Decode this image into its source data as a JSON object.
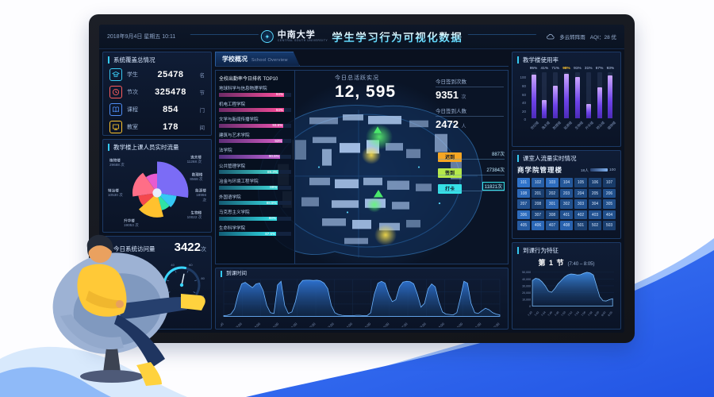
{
  "header": {
    "datetime": "2018年9月4日 星期五 10:11",
    "university": "中南大学",
    "university_en": "CENTRAL SOUTH UNIVERSITY",
    "title": "学生学习行为可视化数据",
    "weather": "多云转阵雨",
    "aqi": "AQI：28 优"
  },
  "system_coverage": {
    "title": "系统覆盖总情况",
    "items": [
      {
        "icon": "graduation-cap",
        "label": "学生",
        "value": "25478",
        "unit": "名",
        "color": "#38c9f2"
      },
      {
        "icon": "clock",
        "label": "节次",
        "value": "325478",
        "unit": "节",
        "color": "#ff5d5d"
      },
      {
        "icon": "book",
        "label": "课程",
        "value": "854",
        "unit": "门",
        "color": "#4f8df5"
      },
      {
        "icon": "classroom",
        "label": "教室",
        "value": "178",
        "unit": "间",
        "color": "#ffc62e"
      }
    ]
  },
  "building_flow": {
    "title": "教学楼上课人员实时流量",
    "chart_data": {
      "type": "pie",
      "style": "nightingale-rose",
      "segments": [
        {
          "name": "植物楼",
          "value": 29688,
          "label": "29688 次",
          "color": "#7b6cf6"
        },
        {
          "name": "逸夫楼",
          "value": 11268,
          "label": "11268 次",
          "color": "#35c8f5"
        },
        {
          "name": "数理楼",
          "value": 8568,
          "label": "8568 次",
          "color": "#2fe3a6"
        },
        {
          "name": "能源楼",
          "value": 18966,
          "label": "18966 次",
          "color": "#ffc12e"
        },
        {
          "name": "生物楼",
          "value": 10022,
          "label": "10022 次",
          "color": "#f5484d"
        },
        {
          "name": "升华楼",
          "value": 19053,
          "label": "19053 次",
          "color": "#ff6e87"
        },
        {
          "name": "特冶楼",
          "value": 10530,
          "label": "10530 次",
          "color": "#e85bd0"
        }
      ]
    }
  },
  "visits": {
    "title": "今日系统访问量",
    "value": "3422",
    "unit": "次",
    "gauges": [
      {
        "ticks": [
          "0",
          "20",
          "40",
          "60",
          "80",
          "100"
        ],
        "needle_pct": 62
      },
      {
        "ticks": [
          "0",
          "20",
          "40",
          "60",
          "80",
          "100"
        ],
        "needle_pct": 55
      }
    ]
  },
  "school_overview": {
    "tab_label": "学校概况",
    "tab_sublabel": "School Overview"
  },
  "attendance_top10": {
    "panel_title": "全校出勤率今日排名 TOP10",
    "chart_data": {
      "type": "bar",
      "orientation": "horizontal",
      "categories": [
        "地球科学与信息物理学院",
        "机电工程学院",
        "文学与新闻传播学院",
        "建筑与艺术学院",
        "法学院",
        "公共管理学院",
        "冶金与环境工程学院",
        "外国语学院",
        "马克思主义学院",
        "生命科学学院"
      ],
      "values": [
        94,
        94,
        93.5,
        93,
        90.5,
        89.3,
        89,
        88.5,
        88,
        87.5
      ],
      "value_labels": [
        "94%",
        "94%",
        "93.5%",
        "93%",
        "90.5%",
        "89.3%",
        "89%",
        "88.5%",
        "88%",
        "87.5%"
      ],
      "colors": [
        "linear-gradient(90deg,#6d2b66,#ff4f9e)",
        "linear-gradient(90deg,#6d2b66,#fb4d9a)",
        "linear-gradient(90deg,#682d6e,#ee53ae)",
        "linear-gradient(90deg,#5e2f78,#d85cc4)",
        "linear-gradient(90deg,#523180,#c062d2)",
        "linear-gradient(90deg,#18586e,#45dbd2)",
        "linear-gradient(90deg,#16586f,#3fd9da)",
        "linear-gradient(90deg,#145a72,#38dde2)",
        "linear-gradient(90deg,#135b74,#35e0e6)",
        "linear-gradient(90deg,#125c76,#31e2ea)"
      ]
    }
  },
  "map": {
    "active_label": "今日总活跃实况",
    "active_value": "12, 595",
    "checkin_count_label": "今日签到次数",
    "checkin_count": "9351",
    "checkin_count_unit": "次",
    "checkin_people_label": "今日签到人数",
    "checkin_people": "2472",
    "checkin_people_unit": "人",
    "legend": [
      {
        "label": "迟到",
        "value": "887次",
        "color": "#f5a623"
      },
      {
        "label": "签到",
        "value": "27384次",
        "color": "#b5e84a"
      },
      {
        "label": "打卡",
        "value": "11821次",
        "color": "#36e0e6"
      }
    ]
  },
  "arrival_time": {
    "title": "到课时间",
    "chart_data": {
      "type": "area",
      "x": [
        "7:00",
        "8:00",
        "9:00",
        "10:00",
        "11:00",
        "12:00",
        "13:00",
        "14:00",
        "15:00",
        "16:00",
        "17:00",
        "18:00",
        "19:00",
        "20:00",
        "21:00",
        "22:00"
      ],
      "ymax": 100,
      "values": [
        2,
        3,
        6,
        20,
        60,
        88,
        92,
        85,
        78,
        88,
        90,
        70,
        30,
        10,
        8,
        85,
        95,
        30,
        8,
        12,
        40,
        85,
        97,
        98,
        98,
        97,
        98,
        96,
        90,
        75,
        30,
        10,
        5,
        3,
        2,
        2,
        2,
        3,
        3,
        2,
        2,
        10,
        60,
        90,
        95,
        90,
        60,
        40,
        45,
        80,
        93,
        95,
        94,
        88,
        60,
        25,
        35,
        75,
        88,
        80,
        40,
        12,
        6,
        5,
        4,
        10,
        50,
        95,
        90,
        35,
        10,
        8,
        15,
        22,
        18,
        10,
        6,
        4
      ]
    }
  },
  "building_usage": {
    "title": "教学楼使用率",
    "chart_data": {
      "type": "bar",
      "categories": [
        "世纪楼",
        "逸夫楼",
        "数理楼",
        "能源楼",
        "生物楼",
        "升华楼",
        "特冶楼",
        "植物楼"
      ],
      "values": [
        95,
        41,
        71,
        98,
        91,
        31,
        67,
        93
      ],
      "value_labels": [
        "95%",
        "41%",
        "71%",
        "98%",
        "91%",
        "31%",
        "67%",
        "93%"
      ],
      "highlight_index": 3,
      "yticks": [
        "0",
        "20",
        "40",
        "60",
        "80",
        "100"
      ]
    }
  },
  "classroom_flow": {
    "title": "课室人流量实时情况",
    "subtitle": "商学院管理楼",
    "legend_min": "18人",
    "legend_max": "100",
    "rooms": [
      "101",
      "102",
      "103",
      "104",
      "105",
      "106",
      "107",
      "108",
      "201",
      "202",
      "203",
      "204",
      "205",
      "206",
      "207",
      "208",
      "301",
      "302",
      "303",
      "304",
      "305",
      "306",
      "307",
      "308",
      "401",
      "402",
      "403",
      "404",
      "405",
      "406",
      "407",
      "408",
      "501",
      "502",
      "503"
    ],
    "intensity": [
      0.85,
      0.6,
      0.75,
      0.5,
      0.25,
      0.2,
      0.15,
      0.7,
      0.2,
      0.25,
      0.45,
      0.35,
      0.2,
      0.4,
      0.45,
      0.2,
      0.65,
      0.4,
      0.45,
      0.3,
      0.4,
      0.75,
      0.25,
      0.3,
      0.45,
      0.4,
      0.45,
      0.4,
      0.55,
      0.7,
      0.45,
      0.65,
      0.2,
      0.25,
      0.2
    ]
  },
  "attendance_behavior": {
    "title": "到课行为特征",
    "period_label": "第 1 节",
    "period_time": "(7:40 – 8:05)",
    "chart_data": {
      "type": "area",
      "x": [
        "7:40",
        "7:42",
        "7:44",
        "7:46",
        "7:48",
        "7:50",
        "7:52",
        "7:54",
        "7:56",
        "7:58",
        "8:00",
        "8:02",
        "8:05"
      ],
      "ymax": 50000,
      "yticks": [
        "50,000",
        "40,000",
        "30,000",
        "20,000",
        "10,000",
        "0"
      ],
      "values": [
        38000,
        41000,
        40000,
        36000,
        30000,
        22000,
        20500,
        26000,
        33000,
        38000,
        43000,
        46000,
        47500,
        47000,
        46000,
        46500,
        48500,
        50000,
        49000,
        46000,
        30000,
        14000,
        8000,
        7500,
        9500,
        11000
      ]
    }
  }
}
